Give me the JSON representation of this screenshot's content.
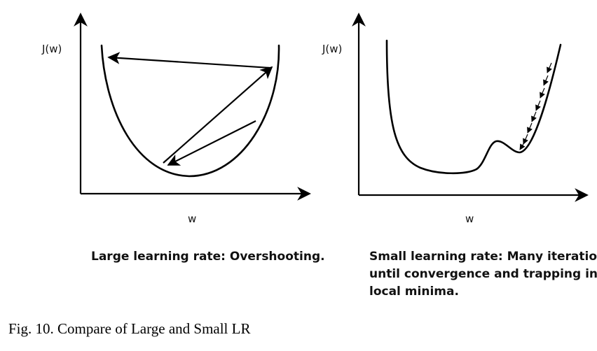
{
  "left_panel": {
    "y_axis_label": "J(w)",
    "x_axis_label": "w",
    "caption": "Large learning rate: Overshooting."
  },
  "right_panel": {
    "y_axis_label": "J(w)",
    "x_axis_label": "w",
    "caption_lines": [
      "Small learning rate: Many iteration",
      "until convergence and trapping in",
      "local minima."
    ]
  },
  "figure_caption": "Fig. 10. Compare of Large and Small LR"
}
